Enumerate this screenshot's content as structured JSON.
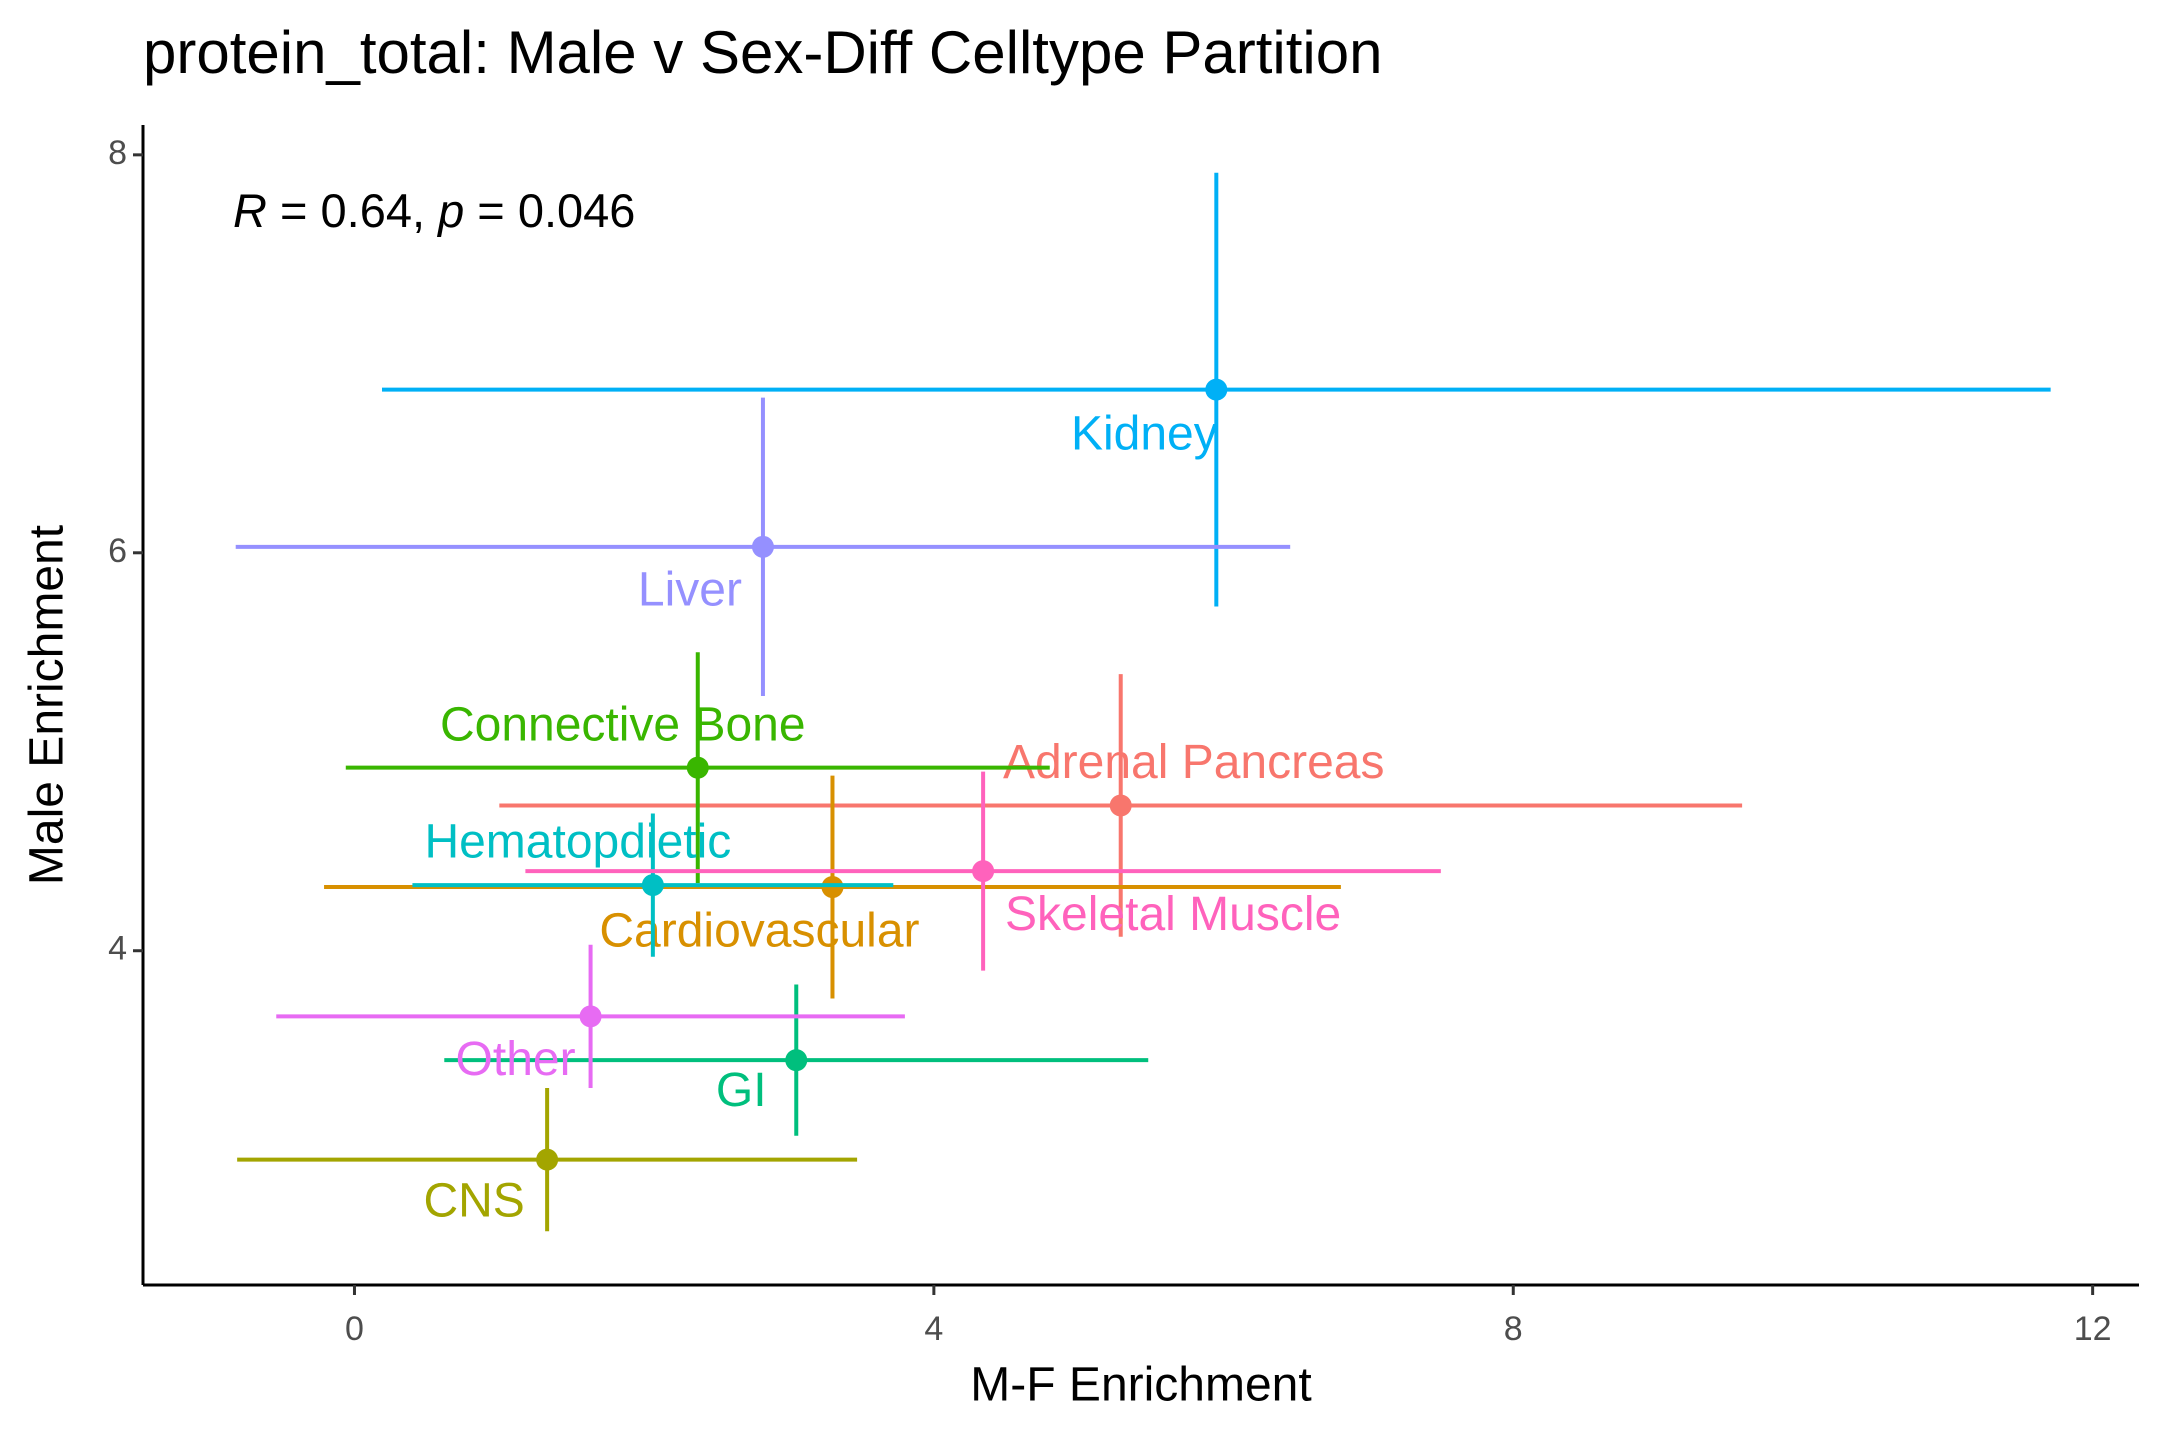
{
  "chart_data": {
    "type": "scatter",
    "title": "protein_total: Male v Sex-Diff Celltype Partition",
    "xlabel": "M-F Enrichment",
    "ylabel": "Male Enrichment",
    "annotation": [
      "R",
      " = 0.64, ",
      "p",
      " = 0.046"
    ],
    "xlim": [
      -1.46,
      12.32
    ],
    "ylim": [
      2.32,
      8.15
    ],
    "xticks": [
      0,
      4,
      8,
      12
    ],
    "yticks": [
      4,
      6,
      8
    ],
    "grid": false,
    "series": [
      {
        "name": "Adrenal Pancreas",
        "color": "#F8766D",
        "x": [
          5.29
        ],
        "values": [
          4.73
        ],
        "xerr": [
          4.29
        ],
        "yerr": [
          0.66
        ]
      },
      {
        "name": "CNS",
        "color": "#A3A500",
        "x": [
          1.33
        ],
        "values": [
          2.95
        ],
        "xerr": [
          2.14
        ],
        "yerr": [
          0.36
        ]
      },
      {
        "name": "Cardiovascular",
        "color": "#D89000",
        "x": [
          3.3
        ],
        "values": [
          4.32
        ],
        "xerr": [
          3.51
        ],
        "yerr": [
          0.56
        ]
      },
      {
        "name": "Connective Bone",
        "color": "#39B600",
        "x": [
          2.37
        ],
        "values": [
          4.92
        ],
        "xerr": [
          2.43
        ],
        "yerr": [
          0.58
        ]
      },
      {
        "name": "GI",
        "color": "#00BF7D",
        "x": [
          3.05
        ],
        "values": [
          3.45
        ],
        "xerr": [
          2.43
        ],
        "yerr": [
          0.38
        ]
      },
      {
        "name": "Hematopdietic",
        "color": "#00BFC4",
        "x": [
          2.06
        ],
        "values": [
          4.33
        ],
        "xerr": [
          1.66
        ],
        "yerr": [
          0.36
        ]
      },
      {
        "name": "Kidney",
        "color": "#00B0F6",
        "x": [
          5.95
        ],
        "values": [
          6.82
        ],
        "xerr": [
          5.76
        ],
        "yerr": [
          1.09
        ]
      },
      {
        "name": "Liver",
        "color": "#9590FF",
        "x": [
          2.82
        ],
        "values": [
          6.03
        ],
        "xerr": [
          3.64
        ],
        "yerr": [
          0.75
        ]
      },
      {
        "name": "Other",
        "color": "#E76BF3",
        "x": [
          1.63
        ],
        "values": [
          3.67
        ],
        "xerr": [
          2.17
        ],
        "yerr": [
          0.36
        ]
      },
      {
        "name": "Skeletal Muscle",
        "color": "#FF62BC",
        "x": [
          4.34
        ],
        "values": [
          4.4
        ],
        "xerr": [
          3.16
        ],
        "yerr": [
          0.5
        ]
      }
    ]
  }
}
